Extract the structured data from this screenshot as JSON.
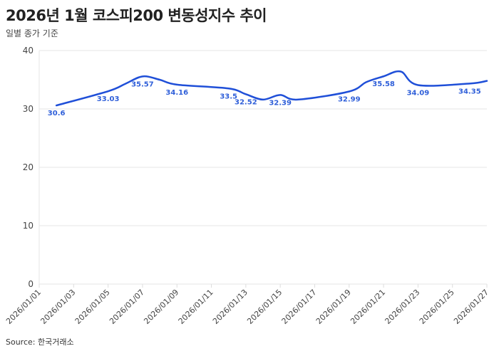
{
  "title": "2026년 1월 코스피200 변동성지수 추이",
  "subtitle": "일별 종가 기준",
  "source": "Source: 한국거래소",
  "chart_data": {
    "type": "line",
    "title": "2026년 1월 코스피200 변동성지수 추이",
    "subtitle": "일별 종가 기준",
    "xlabel": "",
    "ylabel": "",
    "ylim": [
      0,
      40
    ],
    "yticks": [
      0,
      10,
      20,
      30,
      40
    ],
    "xlim": [
      "2026/01/01",
      "2026/01/27"
    ],
    "xticks": [
      "2026/01/01",
      "2026/01/03",
      "2026/01/05",
      "2026/01/07",
      "2026/01/09",
      "2026/01/11",
      "2026/01/13",
      "2026/01/15",
      "2026/01/17",
      "2026/01/19",
      "2026/01/21",
      "2026/01/23",
      "2026/01/25",
      "2026/01/27"
    ],
    "grid": "horizontal",
    "color": "#1f4fd8",
    "x": [
      "2026/01/02",
      "2026/01/05",
      "2026/01/06",
      "2026/01/07",
      "2026/01/08",
      "2026/01/09",
      "2026/01/12",
      "2026/01/13",
      "2026/01/14",
      "2026/01/15",
      "2026/01/16",
      "2026/01/19",
      "2026/01/20",
      "2026/01/21",
      "2026/01/22",
      "2026/01/23",
      "2026/01/26",
      "2026/01/27"
    ],
    "y": [
      30.6,
      33.03,
      34.3,
      35.57,
      35.0,
      34.16,
      33.5,
      32.52,
      31.6,
      32.39,
      31.6,
      32.99,
      34.6,
      35.58,
      36.4,
      34.09,
      34.35,
      34.8
    ],
    "data_labels": [
      "30.6",
      "33.03",
      null,
      "35.57",
      null,
      "34.16",
      "33.5",
      "32.52",
      null,
      "32.39",
      null,
      "32.99",
      null,
      "35.58",
      null,
      "34.09",
      "34.35",
      null
    ]
  }
}
